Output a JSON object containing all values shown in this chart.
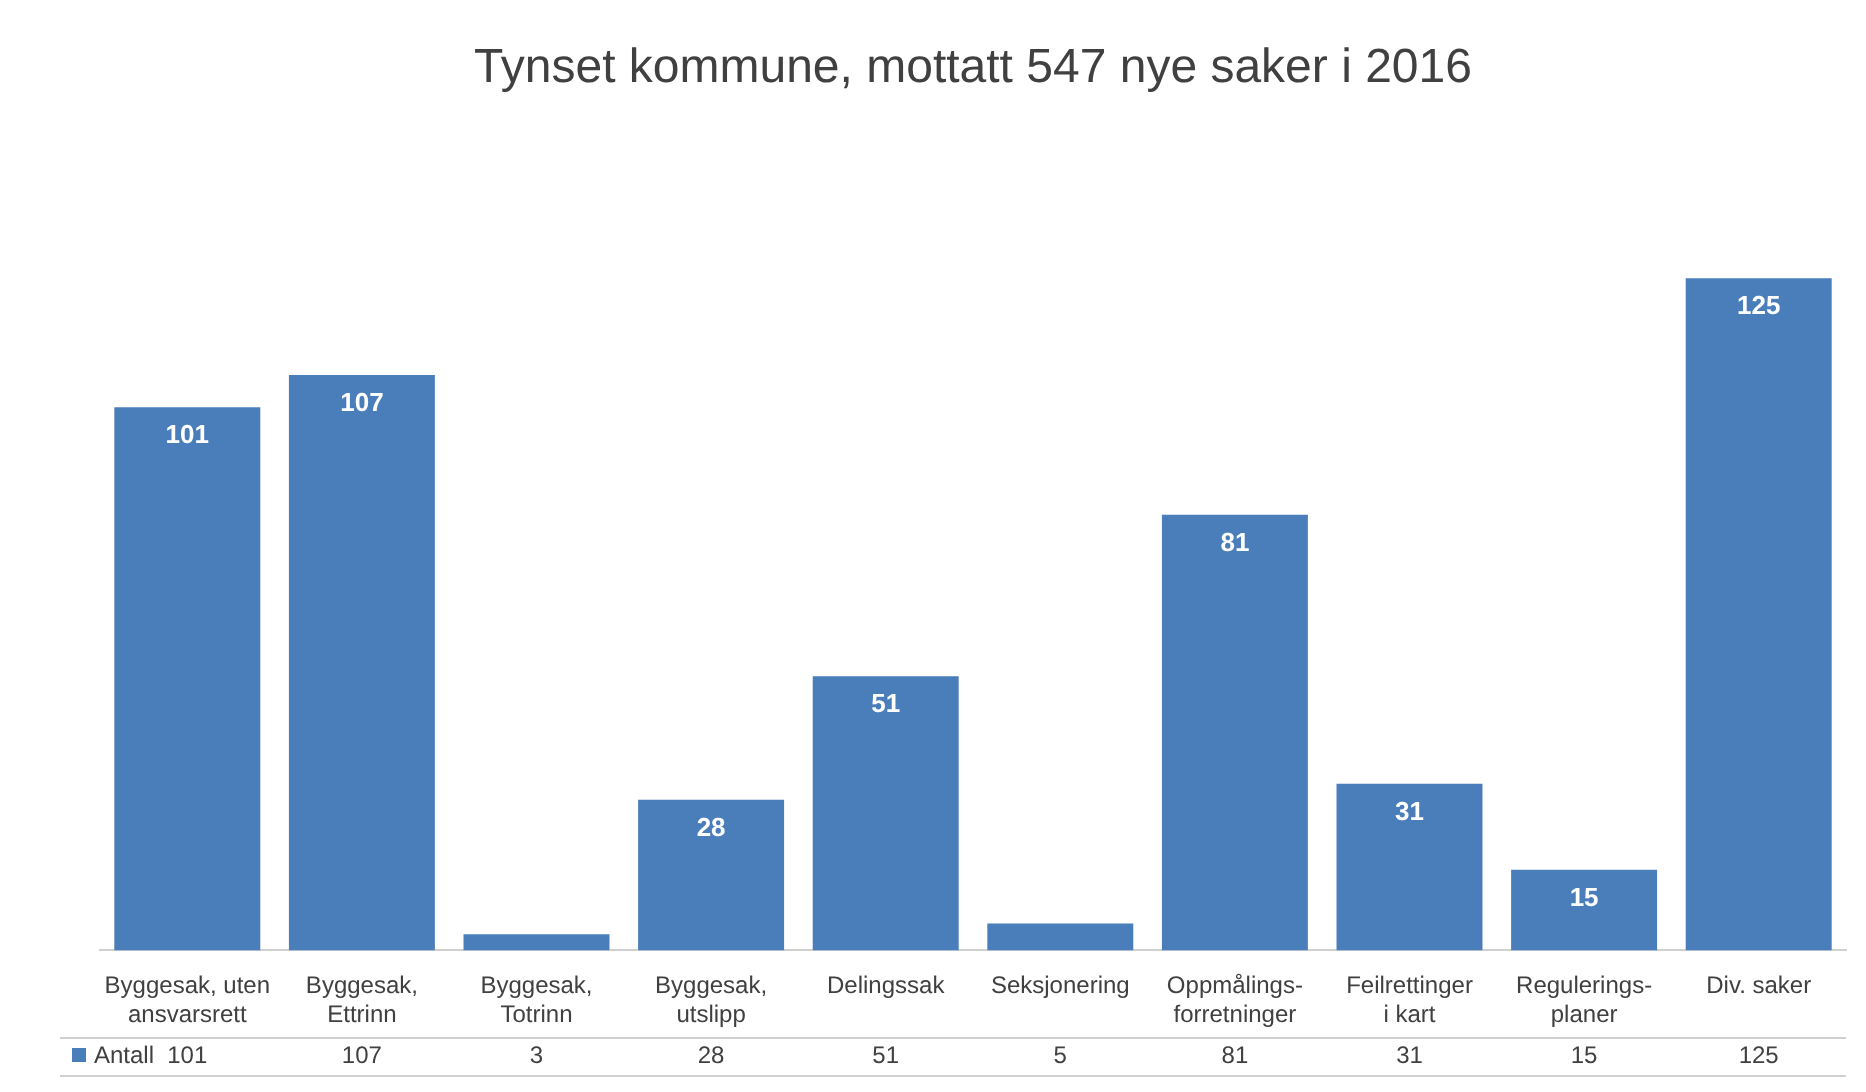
{
  "chart_data": {
    "type": "bar",
    "title": "Tynset kommune, mottatt 547 nye saker i 2016",
    "categories": [
      "Byggesak, uten ansvarsrett",
      "Byggesak, Ettrinn",
      "Byggesak, Totrinn",
      "Byggesak, utslipp",
      "Delingssak",
      "Seksjonering",
      "Oppmålings-forretninger",
      "Feilrettinger i kart",
      "Regulerings-planer",
      "Div. saker"
    ],
    "series": [
      {
        "name": "Antall",
        "color": "#4a7ebb",
        "values": [
          101,
          107,
          3,
          28,
          51,
          5,
          81,
          31,
          15,
          125
        ]
      }
    ],
    "annotations": [
      {
        "text": "101",
        "x": "Byggesak, uten ansvarsrett",
        "y": 101
      },
      {
        "text": "107",
        "x": "Byggesak, Ettrinn",
        "y": 107
      },
      {
        "text": "28",
        "x": "Byggesak, utslipp",
        "y": 28
      },
      {
        "text": "51",
        "x": "Delingssak",
        "y": 51
      },
      {
        "text": "81",
        "x": "Oppmålings-forretninger",
        "y": 81
      },
      {
        "text": "31",
        "x": "Feilrettinger i kart",
        "y": 31
      },
      {
        "text": "15",
        "x": "Regulerings-planer",
        "y": 15
      },
      {
        "text": "125",
        "x": "Div. saker",
        "y": 125
      }
    ],
    "data_labels": true,
    "legend": "bottom left",
    "grid": false,
    "tick_labels": "x"
  }
}
